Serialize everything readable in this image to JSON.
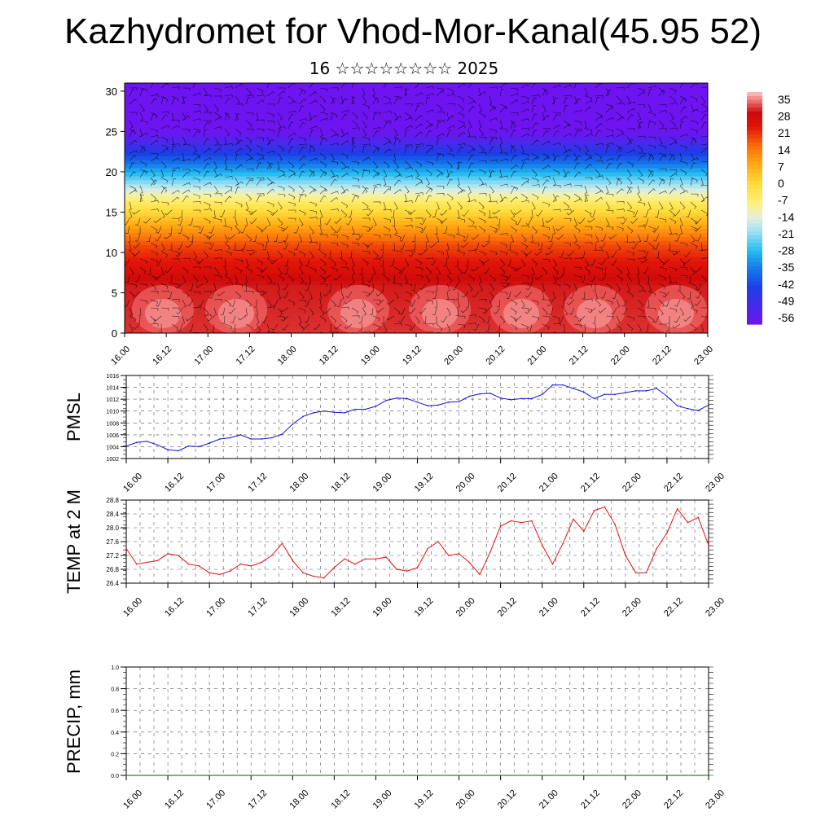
{
  "page": {
    "title": "Kazhydromet for Vhod-Mor-Kanal(45.95 52)",
    "subtitle": "16 ☆☆☆☆☆☆☆☆ 2025"
  },
  "colors": {
    "pmsl_line": "#1010e0",
    "temp_line": "#e01010",
    "precip_line": "#006400",
    "grid": "#555555"
  },
  "chart_data": [
    {
      "type": "heatmap",
      "panel": "vertical-section",
      "x_ticks": [
        "16.00",
        "16.12",
        "17.00",
        "17.12",
        "18.00",
        "18.12",
        "19.00",
        "19.12",
        "20.00",
        "20.12",
        "21.00",
        "21.12",
        "22.00",
        "22.12",
        "23.00"
      ],
      "y_ticks": [
        "0",
        "5",
        "10",
        "15",
        "20",
        "25",
        "30"
      ],
      "ylim": [
        0,
        31
      ],
      "colorbar_labels": [
        "35",
        "28",
        "21",
        "14",
        "7",
        "0",
        "-7",
        "-14",
        "-21",
        "-28",
        "-35",
        "-42",
        "-49",
        "-56"
      ],
      "overlay": "wind barbs"
    },
    {
      "type": "line",
      "ylabel": "PMSL",
      "ylim": [
        1002,
        1016
      ],
      "y_ticks": [
        "1016",
        "1014",
        "1012",
        "1010",
        "1008",
        "1006",
        "1004",
        "1002"
      ],
      "x_ticks": [
        "16.00",
        "16.12",
        "17.00",
        "17.12",
        "18.00",
        "18.12",
        "19.00",
        "19.12",
        "20.00",
        "20.12",
        "21.00",
        "21.12",
        "22.00",
        "22.12",
        "23.00"
      ],
      "x": [
        0,
        3,
        6,
        9,
        12,
        15,
        18,
        21,
        24,
        27,
        30,
        33,
        36,
        39,
        42,
        45,
        48,
        51,
        54,
        57,
        60,
        63,
        66,
        69,
        72,
        75,
        78,
        81,
        84,
        87,
        90,
        93,
        96,
        99,
        102,
        105,
        108,
        111,
        114,
        117,
        120,
        123,
        126,
        129,
        132,
        135,
        138,
        141,
        144,
        147,
        150,
        153,
        156,
        159,
        162,
        165,
        168
      ],
      "series": [
        {
          "values": [
            1004.1,
            1004.7,
            1004.9,
            1004.3,
            1003.5,
            1003.3,
            1004.1,
            1004.0,
            1004.6,
            1005.3,
            1005.5,
            1006.0,
            1005.3,
            1005.3,
            1005.5,
            1006.1,
            1007.8,
            1009.1,
            1009.7,
            1010.0,
            1009.8,
            1009.7,
            1010.3,
            1010.3,
            1010.8,
            1011.8,
            1012.2,
            1012.1,
            1011.5,
            1010.9,
            1011.0,
            1011.5,
            1011.6,
            1012.5,
            1012.9,
            1013.0,
            1012.2,
            1011.9,
            1012.1,
            1012.1,
            1012.8,
            1014.4,
            1014.4,
            1013.8,
            1013.2,
            1012.1,
            1012.8,
            1012.8,
            1013.1,
            1013.4,
            1013.4,
            1013.8,
            1012.5,
            1010.9,
            1010.4,
            1010.1,
            1011.0
          ]
        }
      ]
    },
    {
      "type": "line",
      "ylabel": "TEMP at 2 M",
      "ylim": [
        26.4,
        28.8
      ],
      "y_ticks": [
        "28.8",
        "28.4",
        "28.0",
        "27.6",
        "27.2",
        "26.8",
        "26.4"
      ],
      "x_ticks": [
        "16.00",
        "16.12",
        "17.00",
        "17.12",
        "18.00",
        "18.12",
        "19.00",
        "19.12",
        "20.00",
        "20.12",
        "21.00",
        "21.12",
        "22.00",
        "22.12",
        "23.00"
      ],
      "x": [
        0,
        3,
        6,
        9,
        12,
        15,
        18,
        21,
        24,
        27,
        30,
        33,
        36,
        39,
        42,
        45,
        48,
        51,
        54,
        57,
        60,
        63,
        66,
        69,
        72,
        75,
        78,
        81,
        84,
        87,
        90,
        93,
        96,
        99,
        102,
        105,
        108,
        111,
        114,
        117,
        120,
        123,
        126,
        129,
        132,
        135,
        138,
        141,
        144,
        147,
        150,
        153,
        156,
        159,
        162,
        165,
        168
      ],
      "series": [
        {
          "values": [
            27.4,
            26.95,
            27.0,
            27.05,
            27.25,
            27.2,
            26.95,
            26.9,
            26.7,
            26.65,
            26.75,
            26.95,
            26.9,
            27.0,
            27.2,
            27.55,
            27.05,
            26.7,
            26.6,
            26.55,
            26.85,
            27.1,
            26.95,
            27.1,
            27.1,
            27.15,
            26.8,
            26.75,
            26.85,
            27.4,
            27.6,
            27.2,
            27.25,
            27.0,
            26.65,
            27.3,
            28.05,
            28.2,
            28.15,
            28.2,
            27.5,
            26.95,
            27.55,
            28.25,
            27.9,
            28.5,
            28.6,
            28.1,
            27.2,
            26.7,
            26.7,
            27.4,
            27.85,
            28.55,
            28.15,
            28.3,
            27.5
          ]
        }
      ]
    },
    {
      "type": "line",
      "ylabel": "PRECIP, mm",
      "ylim": [
        0,
        1
      ],
      "y_ticks": [
        "1.0",
        "0.8",
        "0.6",
        "0.4",
        "0.2",
        "0.0"
      ],
      "x_ticks": [
        "16.00",
        "16.12",
        "17.00",
        "17.12",
        "18.00",
        "18.12",
        "19.00",
        "19.12",
        "20.00",
        "20.12",
        "21.00",
        "21.12",
        "22.00",
        "22.12",
        "23.00"
      ],
      "x": [
        0,
        168
      ],
      "series": [
        {
          "values": [
            0,
            0
          ]
        }
      ]
    }
  ]
}
